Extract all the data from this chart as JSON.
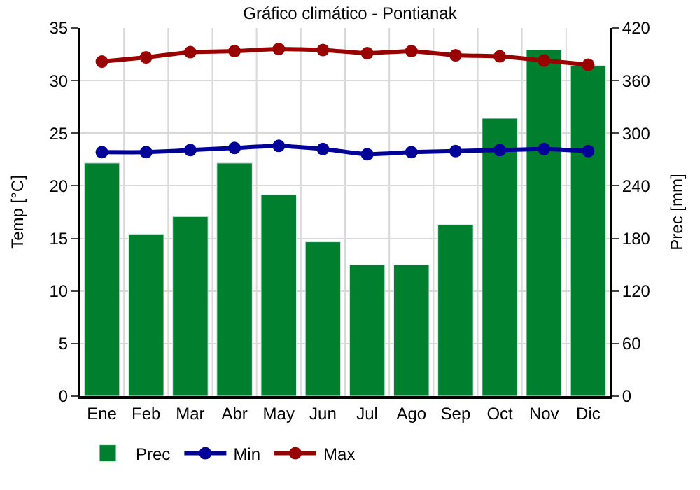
{
  "chart_data": {
    "type": "bar",
    "title": "Gráfico climático - Pontianak",
    "ylabel": "Temp [°C]",
    "y2label": "Prec [mm]",
    "categories": [
      "Ene",
      "Feb",
      "Mar",
      "Abr",
      "May",
      "Jun",
      "Jul",
      "Ago",
      "Sep",
      "Oct",
      "Nov",
      "Dic"
    ],
    "series": [
      {
        "name": "Prec",
        "axis": "y2",
        "color": "#007f2f",
        "values": [
          266,
          185,
          205,
          266,
          230,
          176,
          150,
          150,
          196,
          317,
          395,
          377
        ]
      },
      {
        "name": "Min",
        "type": "line",
        "axis": "y",
        "color": "#000099",
        "values": [
          23.2,
          23.2,
          23.4,
          23.6,
          23.8,
          23.5,
          23.0,
          23.2,
          23.3,
          23.4,
          23.5,
          23.3
        ]
      },
      {
        "name": "Max",
        "type": "line",
        "axis": "y",
        "color": "#990000",
        "values": [
          31.8,
          32.2,
          32.7,
          32.8,
          33.0,
          32.9,
          32.6,
          32.8,
          32.4,
          32.3,
          31.9,
          31.5
        ]
      }
    ],
    "ylim": [
      0,
      35
    ],
    "yticks": [
      0,
      5,
      10,
      15,
      20,
      25,
      30,
      35
    ],
    "y2lim": [
      0,
      420
    ],
    "y2ticks": [
      0,
      60,
      120,
      180,
      240,
      300,
      360,
      420
    ],
    "grid": true,
    "legend": "bottom",
    "marker": "circle",
    "line_style": "solid"
  }
}
